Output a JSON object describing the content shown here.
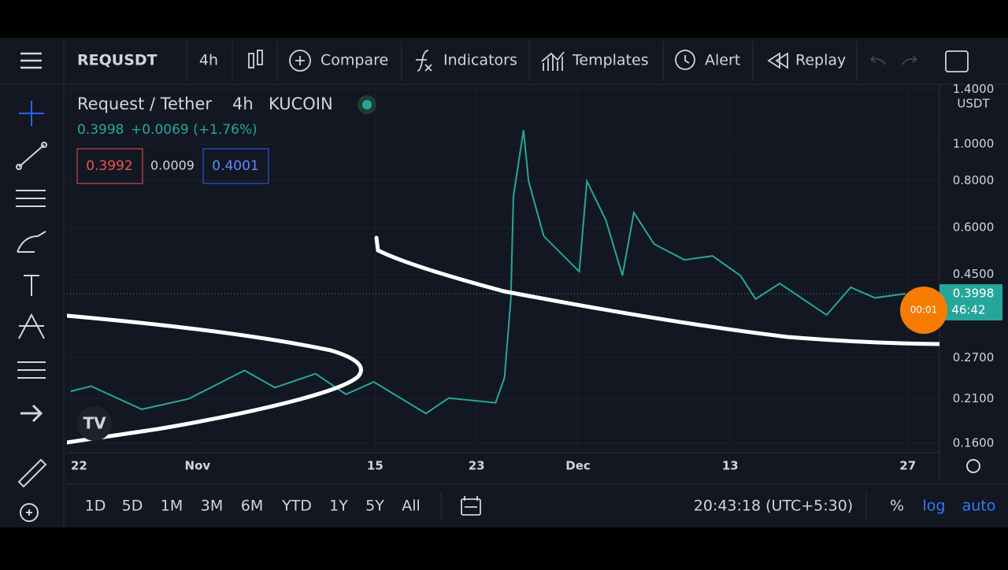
{
  "toolbar": {
    "symbol": "REQUSDT",
    "interval": "4h",
    "buttons": [
      "Compare",
      "Indicators",
      "Templates",
      "Alert",
      "Replay"
    ]
  },
  "legend": {
    "title": "Request / Tether",
    "interval": "4h",
    "exchange": "KUCOIN",
    "last": "0.3998",
    "change": "+0.0069 (+1.76%)",
    "bid": "0.3992",
    "spread": "0.0009",
    "ask": "0.4001"
  },
  "price_axis": {
    "currency": "USDT",
    "last_price": "0.3998",
    "countdown": "46:42",
    "bubble": "00:01"
  },
  "chart_data": {
    "type": "line",
    "color": "#26a69a",
    "log_scale": true,
    "grid": true,
    "x": [
      0,
      1.6,
      5.6,
      9.3,
      13.7,
      16.1,
      19.3,
      21.7,
      23.9,
      28,
      29.8,
      33.5,
      34.2,
      34.7,
      34.9,
      35.7,
      36.1,
      37.3,
      40.1,
      40.7,
      42.2,
      43.5,
      44.4,
      46,
      48.4,
      50.6,
      52.8,
      54,
      55.9,
      59.6,
      61.5,
      63.4,
      65.8
    ],
    "values": [
      0.22,
      0.227,
      0.197,
      0.21,
      0.25,
      0.225,
      0.245,
      0.216,
      0.233,
      0.192,
      0.211,
      0.205,
      0.239,
      0.387,
      0.724,
      1.09,
      0.797,
      0.569,
      0.458,
      0.797,
      0.627,
      0.447,
      0.657,
      0.542,
      0.492,
      0.504,
      0.447,
      0.387,
      0.426,
      0.351,
      0.416,
      0.39,
      0.3998
    ],
    "xlim": [
      -0.3,
      68.5
    ],
    "ylim": [
      0.151,
      1.443
    ],
    "xticks": [
      {
        "value": 0,
        "label": "22"
      },
      {
        "value": 10,
        "label": "Nov"
      },
      {
        "value": 24,
        "label": "15"
      },
      {
        "value": 32,
        "label": "23"
      },
      {
        "value": 40,
        "label": "Dec"
      },
      {
        "value": 52,
        "label": "13"
      },
      {
        "value": 66,
        "label": "27"
      }
    ],
    "yticks": [
      {
        "value": 0.16,
        "label": "0.1600"
      },
      {
        "value": 0.21,
        "label": "0.2100"
      },
      {
        "value": 0.27,
        "label": "0.2700"
      },
      {
        "value": 0.45,
        "label": "0.4500"
      },
      {
        "value": 0.6,
        "label": "0.6000"
      },
      {
        "value": 0.8,
        "label": "0.8000"
      },
      {
        "value": 1,
        "label": "1.0000"
      },
      {
        "value": 1.4,
        "label": "1.4000"
      }
    ]
  },
  "bottom_bar": {
    "ranges": [
      "1D",
      "5D",
      "1M",
      "3M",
      "6M",
      "YTD",
      "1Y",
      "5Y",
      "All"
    ],
    "clock": "20:43:18 (UTC+5:30)",
    "options": [
      "%",
      "log",
      "auto"
    ]
  }
}
